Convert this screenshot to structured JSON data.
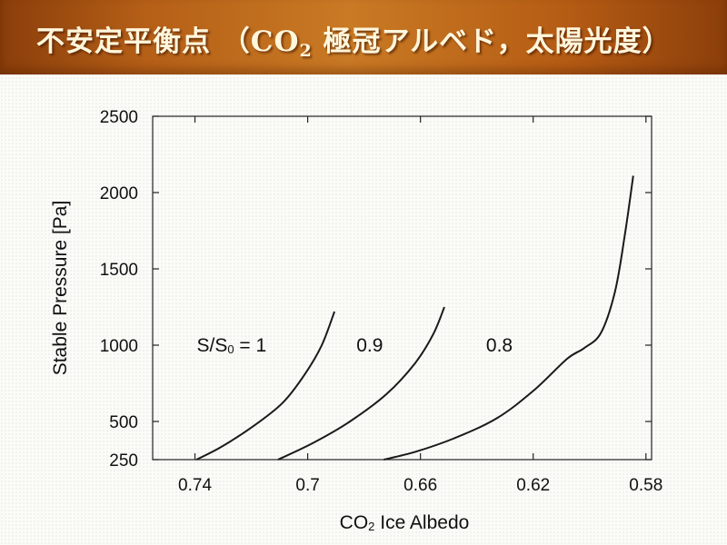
{
  "slide": {
    "title_main": "不安定平衡点 （CO",
    "title_sub": "2",
    "title_rest": " 極冠アルベド，太陽光度）"
  },
  "chart_data": {
    "type": "line",
    "xlabel": {
      "main": "CO",
      "sub": "2",
      "rest": " Ice Albedo"
    },
    "ylabel": "Stable Pressure [Pa]",
    "xlim": [
      0.755,
      0.578
    ],
    "ylim": [
      250,
      2500
    ],
    "x_reversed": true,
    "xticks": [
      0.74,
      0.7,
      0.66,
      0.62,
      0.58
    ],
    "xtick_labels": [
      "0.74",
      "0.7",
      "0.66",
      "0.62",
      "0.58"
    ],
    "yticks": [
      250,
      500,
      1000,
      1500,
      2000,
      2500
    ],
    "ytick_labels": [
      "250",
      "500",
      "1000",
      "1500",
      "2000",
      "2500"
    ],
    "grid": false,
    "series": [
      {
        "name": "S/S0 = 1",
        "label_parts": [
          "S/S",
          "0",
          " = 1"
        ],
        "label_at": [
          0.727,
          1000
        ],
        "points": [
          [
            0.7395,
            250
          ],
          [
            0.731,
            330
          ],
          [
            0.72,
            460
          ],
          [
            0.709,
            620
          ],
          [
            0.701,
            810
          ],
          [
            0.695,
            1000
          ],
          [
            0.6905,
            1220
          ]
        ]
      },
      {
        "name": "0.9",
        "label_parts": [
          "0.9"
        ],
        "label_at": [
          0.678,
          1000
        ],
        "points": [
          [
            0.7105,
            250
          ],
          [
            0.698,
            360
          ],
          [
            0.685,
            500
          ],
          [
            0.672,
            680
          ],
          [
            0.662,
            880
          ],
          [
            0.6555,
            1070
          ],
          [
            0.6515,
            1250
          ]
        ]
      },
      {
        "name": "0.8",
        "label_parts": [
          "0.8"
        ],
        "label_at": [
          0.632,
          1000
        ],
        "points": [
          [
            0.673,
            250
          ],
          [
            0.662,
            300
          ],
          [
            0.648,
            390
          ],
          [
            0.633,
            520
          ],
          [
            0.62,
            700
          ],
          [
            0.608,
            910
          ],
          [
            0.602,
            980
          ],
          [
            0.596,
            1080
          ],
          [
            0.591,
            1350
          ],
          [
            0.5875,
            1720
          ],
          [
            0.5845,
            2110
          ]
        ]
      }
    ]
  }
}
